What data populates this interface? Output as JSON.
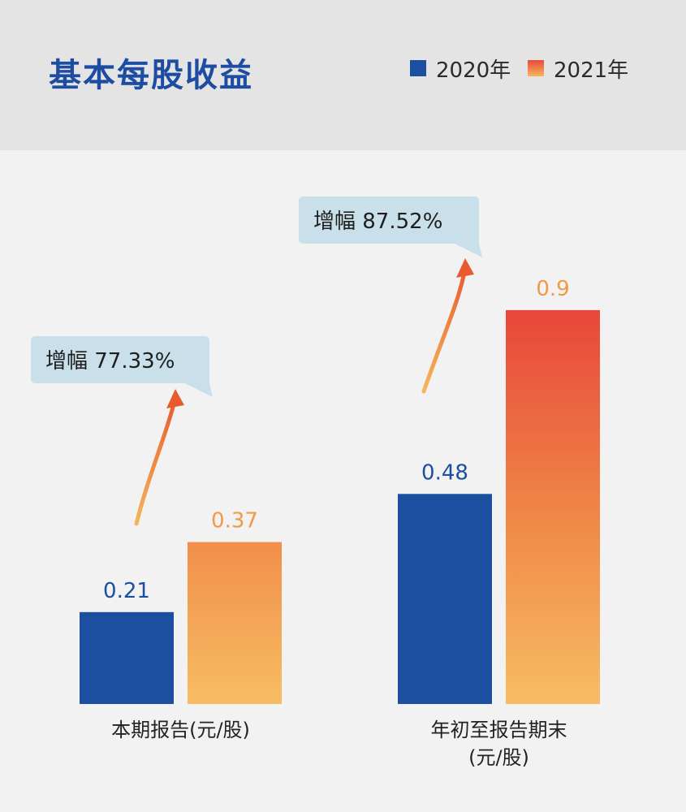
{
  "title": "基本每股收益",
  "legend": [
    {
      "label": "2020年",
      "color": "#1d4fa0"
    },
    {
      "label": "2021年",
      "color": "#f08a3c"
    }
  ],
  "chart_data": {
    "type": "bar",
    "categories": [
      "本期报告(元/股)",
      "年初至报告期末\n(元/股)"
    ],
    "series": [
      {
        "name": "2020年",
        "values": [
          0.21,
          0.48
        ],
        "labels": [
          "0.21",
          "0.48"
        ],
        "color": "#1d4fa0"
      },
      {
        "name": "2021年",
        "values": [
          0.37,
          0.9
        ],
        "labels": [
          "0.37",
          "0.9"
        ],
        "color": "#f08a3c"
      }
    ],
    "annotations": [
      "增幅 77.33%",
      "增幅 87.52%"
    ],
    "ylim": [
      0,
      0.9
    ],
    "grid": false,
    "legend_position": "top-right"
  }
}
